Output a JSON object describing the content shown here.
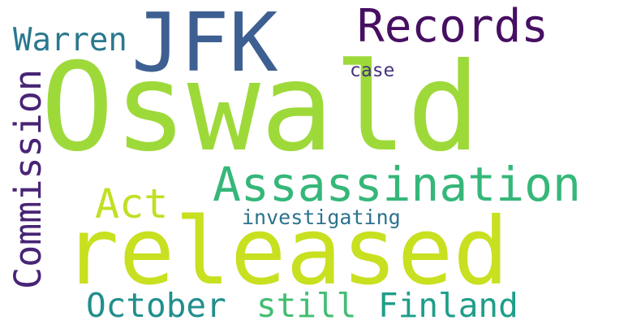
{
  "words": {
    "oswald": {
      "text": "Oswald",
      "color": "#9ed93a"
    },
    "released": {
      "text": "released",
      "color": "#c8e020"
    },
    "jfk": {
      "text": "JFK",
      "color": "#3e5f92"
    },
    "assassination": {
      "text": "Assassination",
      "color": "#35b779"
    },
    "records": {
      "text": "Records",
      "color": "#470f62"
    },
    "warren": {
      "text": "Warren",
      "color": "#2a788e"
    },
    "commission": {
      "text": "Commission",
      "color": "#482475",
      "orientation": "vertical"
    },
    "act": {
      "text": "Act",
      "color": "#c2df23"
    },
    "case": {
      "text": "case",
      "color": "#46337e"
    },
    "investigating": {
      "text": "investigating",
      "color": "#2c728e"
    },
    "october": {
      "text": "October",
      "color": "#218f8d"
    },
    "still": {
      "text": "still",
      "color": "#42be71"
    },
    "finland": {
      "text": "Finland",
      "color": "#1f9e89"
    }
  }
}
